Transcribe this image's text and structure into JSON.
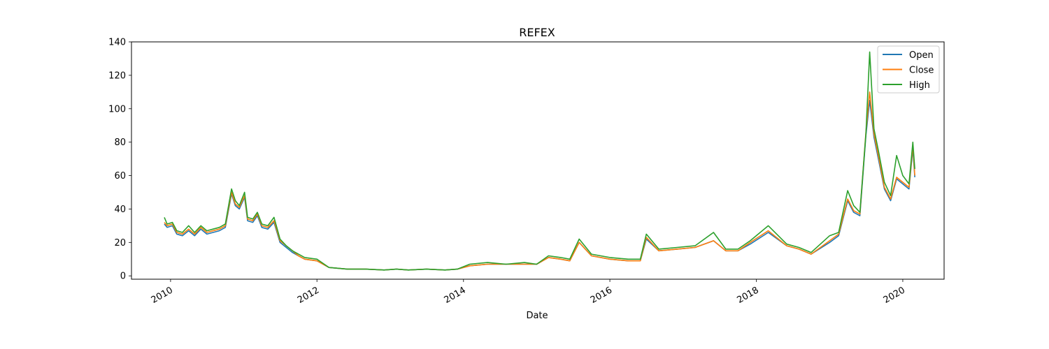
{
  "chart_data": {
    "type": "line",
    "title": "REFEX",
    "xlabel": "Date",
    "ylabel": "",
    "xlim": [
      "2009-06-20",
      "2020-07-25"
    ],
    "ylim": [
      -2,
      140
    ],
    "xticks": [
      "2010-01-01",
      "2012-01-01",
      "2014-01-01",
      "2016-01-01",
      "2018-01-01",
      "2020-01-01"
    ],
    "xtick_labels": [
      "2010",
      "2012",
      "2014",
      "2016",
      "2018",
      "2020"
    ],
    "yticks": [
      0,
      20,
      40,
      60,
      80,
      100,
      120,
      140
    ],
    "grid": false,
    "legend_position": "top-right",
    "series": [
      {
        "name": "Open",
        "color": "#1f77b4",
        "x": [
          "2009-12-01",
          "2009-12-15",
          "2010-01-10",
          "2010-02-01",
          "2010-03-01",
          "2010-04-01",
          "2010-05-01",
          "2010-06-01",
          "2010-07-01",
          "2010-08-01",
          "2010-09-01",
          "2010-10-01",
          "2010-11-01",
          "2010-11-20",
          "2010-12-10",
          "2011-01-05",
          "2011-01-20",
          "2011-02-15",
          "2011-03-10",
          "2011-04-01",
          "2011-05-01",
          "2011-06-01",
          "2011-07-01",
          "2011-08-01",
          "2011-09-01",
          "2011-10-01",
          "2011-11-01",
          "2012-01-01",
          "2012-03-01",
          "2012-06-01",
          "2012-09-01",
          "2012-12-01",
          "2013-02-01",
          "2013-04-01",
          "2013-07-01",
          "2013-10-01",
          "2013-12-01",
          "2014-02-01",
          "2014-05-01",
          "2014-08-01",
          "2014-11-01",
          "2015-01-01",
          "2015-03-01",
          "2015-05-01",
          "2015-06-15",
          "2015-08-01",
          "2015-10-01",
          "2016-01-01",
          "2016-04-01",
          "2016-06-01",
          "2016-07-01",
          "2016-09-01",
          "2016-12-01",
          "2017-03-01",
          "2017-06-01",
          "2017-08-01",
          "2017-10-01",
          "2017-12-01",
          "2018-03-01",
          "2018-06-01",
          "2018-08-01",
          "2018-10-01",
          "2019-01-01",
          "2019-02-15",
          "2019-04-01",
          "2019-05-01",
          "2019-06-01",
          "2019-07-01",
          "2019-07-20",
          "2019-08-10",
          "2019-09-01",
          "2019-10-01",
          "2019-11-01",
          "2019-12-01",
          "2020-01-01",
          "2020-02-01",
          "2020-02-20",
          "2020-03-01"
        ],
        "values": [
          31,
          29,
          30,
          25,
          24,
          27,
          24,
          28,
          25,
          26,
          27,
          29,
          49,
          42,
          40,
          47,
          33,
          32,
          36,
          29,
          28,
          32,
          20,
          17,
          14,
          12,
          10,
          9,
          5,
          4,
          4,
          3.5,
          4,
          3.5,
          4,
          3.5,
          4,
          6,
          7,
          7,
          7,
          7,
          11,
          10,
          9,
          20,
          12,
          10,
          9,
          9,
          22,
          15,
          16,
          17,
          21,
          15,
          15,
          19,
          26,
          18,
          16,
          13,
          20,
          24,
          45,
          38,
          36,
          84,
          105,
          83,
          70,
          52,
          45,
          58,
          55,
          52,
          76,
          59
        ]
      },
      {
        "name": "Close",
        "color": "#ff7f0e",
        "x": [
          "2009-12-01",
          "2009-12-15",
          "2010-01-10",
          "2010-02-01",
          "2010-03-01",
          "2010-04-01",
          "2010-05-01",
          "2010-06-01",
          "2010-07-01",
          "2010-08-01",
          "2010-09-01",
          "2010-10-01",
          "2010-11-01",
          "2010-11-20",
          "2010-12-10",
          "2011-01-05",
          "2011-01-20",
          "2011-02-15",
          "2011-03-10",
          "2011-04-01",
          "2011-05-01",
          "2011-06-01",
          "2011-07-01",
          "2011-08-01",
          "2011-09-01",
          "2011-10-01",
          "2011-11-01",
          "2012-01-01",
          "2012-03-01",
          "2012-06-01",
          "2012-09-01",
          "2012-12-01",
          "2013-02-01",
          "2013-04-01",
          "2013-07-01",
          "2013-10-01",
          "2013-12-01",
          "2014-02-01",
          "2014-05-01",
          "2014-08-01",
          "2014-11-01",
          "2015-01-01",
          "2015-03-01",
          "2015-05-01",
          "2015-06-15",
          "2015-08-01",
          "2015-10-01",
          "2016-01-01",
          "2016-04-01",
          "2016-06-01",
          "2016-07-01",
          "2016-09-01",
          "2016-12-01",
          "2017-03-01",
          "2017-06-01",
          "2017-08-01",
          "2017-10-01",
          "2017-12-01",
          "2018-03-01",
          "2018-06-01",
          "2018-08-01",
          "2018-10-01",
          "2019-01-01",
          "2019-02-15",
          "2019-04-01",
          "2019-05-01",
          "2019-06-01",
          "2019-07-01",
          "2019-07-20",
          "2019-08-10",
          "2019-09-01",
          "2019-10-01",
          "2019-11-01",
          "2019-12-01",
          "2020-01-01",
          "2020-02-01",
          "2020-02-20",
          "2020-03-01"
        ],
        "values": [
          32,
          30,
          31,
          26,
          25,
          28,
          25,
          29,
          26,
          27,
          28,
          30,
          50,
          43,
          41,
          48,
          34,
          33,
          37,
          30,
          29,
          33,
          21,
          18,
          15,
          12,
          10,
          9,
          5,
          4,
          4,
          3.5,
          4,
          3.5,
          4,
          3.5,
          4,
          6,
          7,
          7,
          7,
          7,
          11,
          10,
          9,
          20,
          12,
          10,
          9,
          9,
          23,
          15,
          16,
          17,
          21,
          15,
          15,
          20,
          27,
          18,
          16,
          13,
          21,
          25,
          46,
          39,
          37,
          86,
          110,
          85,
          72,
          53,
          46,
          59,
          56,
          53,
          78,
          60
        ]
      },
      {
        "name": "High",
        "color": "#2ca02c",
        "x": [
          "2009-12-01",
          "2009-12-15",
          "2010-01-10",
          "2010-02-01",
          "2010-03-01",
          "2010-04-01",
          "2010-05-01",
          "2010-06-01",
          "2010-07-01",
          "2010-08-01",
          "2010-09-01",
          "2010-10-01",
          "2010-11-01",
          "2010-11-20",
          "2010-12-10",
          "2011-01-05",
          "2011-01-20",
          "2011-02-15",
          "2011-03-10",
          "2011-04-01",
          "2011-05-01",
          "2011-06-01",
          "2011-07-01",
          "2011-08-01",
          "2011-09-01",
          "2011-10-01",
          "2011-11-01",
          "2012-01-01",
          "2012-03-01",
          "2012-06-01",
          "2012-09-01",
          "2012-12-01",
          "2013-02-01",
          "2013-04-01",
          "2013-07-01",
          "2013-10-01",
          "2013-12-01",
          "2014-02-01",
          "2014-05-01",
          "2014-08-01",
          "2014-11-01",
          "2015-01-01",
          "2015-03-01",
          "2015-05-01",
          "2015-06-15",
          "2015-08-01",
          "2015-10-01",
          "2016-01-01",
          "2016-04-01",
          "2016-06-01",
          "2016-07-01",
          "2016-09-01",
          "2016-12-01",
          "2017-03-01",
          "2017-06-01",
          "2017-08-01",
          "2017-10-01",
          "2017-12-01",
          "2018-03-01",
          "2018-06-01",
          "2018-08-01",
          "2018-10-01",
          "2019-01-01",
          "2019-02-15",
          "2019-04-01",
          "2019-05-01",
          "2019-06-01",
          "2019-07-01",
          "2019-07-20",
          "2019-08-10",
          "2019-09-01",
          "2019-10-01",
          "2019-11-01",
          "2019-12-01",
          "2020-01-01",
          "2020-02-01",
          "2020-02-20",
          "2020-03-01"
        ],
        "values": [
          35,
          31,
          32,
          27,
          26,
          30,
          26,
          30,
          27,
          28,
          29,
          31,
          52,
          45,
          42,
          50,
          35,
          34,
          38,
          31,
          30,
          35,
          22,
          18,
          15,
          13,
          11,
          10,
          5,
          4,
          4,
          3.5,
          4,
          3.5,
          4,
          3.5,
          4,
          7,
          8,
          7,
          8,
          7,
          12,
          11,
          10,
          22,
          13,
          11,
          10,
          10,
          25,
          16,
          17,
          18,
          26,
          16,
          16,
          21,
          30,
          19,
          17,
          14,
          24,
          26,
          51,
          42,
          38,
          85,
          134,
          88,
          75,
          56,
          48,
          72,
          60,
          55,
          80,
          64
        ]
      }
    ]
  }
}
